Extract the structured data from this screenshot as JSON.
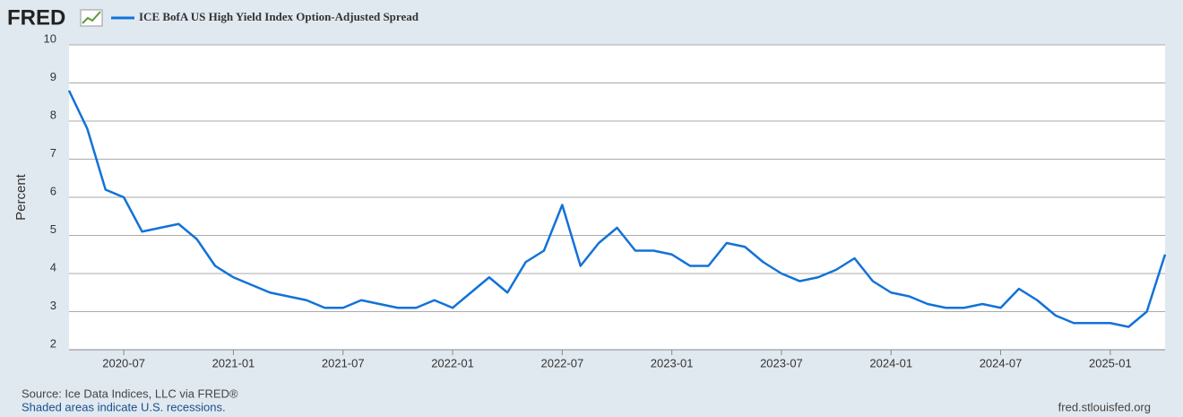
{
  "chart_data": {
    "type": "line",
    "logo": "FRED",
    "y_label": "Percent",
    "source": "Source: Ice Data Indices, LLC via FRED®",
    "note": "Shaded areas indicate U.S. recessions.",
    "credit": "fred.stlouisfed.org",
    "x": [
      "2020-04",
      "2020-05",
      "2020-06",
      "2020-07",
      "2020-08",
      "2020-09",
      "2020-10",
      "2020-11",
      "2020-12",
      "2021-01",
      "2021-02",
      "2021-03",
      "2021-04",
      "2021-05",
      "2021-06",
      "2021-07",
      "2021-08",
      "2021-09",
      "2021-10",
      "2021-11",
      "2021-12",
      "2022-01",
      "2022-02",
      "2022-03",
      "2022-04",
      "2022-05",
      "2022-06",
      "2022-07",
      "2022-08",
      "2022-09",
      "2022-10",
      "2022-11",
      "2022-12",
      "2023-01",
      "2023-02",
      "2023-03",
      "2023-04",
      "2023-05",
      "2023-06",
      "2023-07",
      "2023-08",
      "2023-09",
      "2023-10",
      "2023-11",
      "2023-12",
      "2024-01",
      "2024-02",
      "2024-03",
      "2024-04",
      "2024-05",
      "2024-06",
      "2024-07",
      "2024-08",
      "2024-09",
      "2024-10",
      "2024-11",
      "2024-12",
      "2025-01",
      "2025-02",
      "2025-03",
      "2025-04"
    ],
    "series": [
      {
        "name": "ICE BofA US High Yield Index Option-Adjusted Spread",
        "color": "#1272d8",
        "values": [
          8.8,
          7.8,
          6.2,
          6.0,
          5.1,
          5.2,
          5.3,
          4.9,
          4.2,
          3.9,
          3.7,
          3.5,
          3.4,
          3.3,
          3.1,
          3.1,
          3.3,
          3.2,
          3.1,
          3.1,
          3.3,
          3.1,
          3.5,
          3.9,
          3.5,
          4.3,
          4.6,
          5.8,
          4.2,
          4.8,
          5.2,
          4.6,
          4.6,
          4.5,
          4.2,
          4.2,
          4.8,
          4.7,
          4.3,
          4.0,
          3.8,
          3.9,
          4.1,
          4.4,
          3.8,
          3.5,
          3.4,
          3.2,
          3.1,
          3.1,
          3.2,
          3.1,
          3.6,
          3.3,
          2.9,
          2.7,
          2.7,
          2.7,
          2.6,
          3.0,
          4.5
        ]
      }
    ],
    "xlim": [
      "2020-04",
      "2025-04"
    ],
    "xticks": [
      "2020-07",
      "2021-01",
      "2021-07",
      "2022-01",
      "2022-07",
      "2023-01",
      "2023-07",
      "2024-01",
      "2024-07",
      "2025-01"
    ],
    "ylim": [
      2,
      10
    ],
    "yticks": [
      2,
      3,
      4,
      5,
      6,
      7,
      8,
      9,
      10
    ],
    "grid": true
  }
}
